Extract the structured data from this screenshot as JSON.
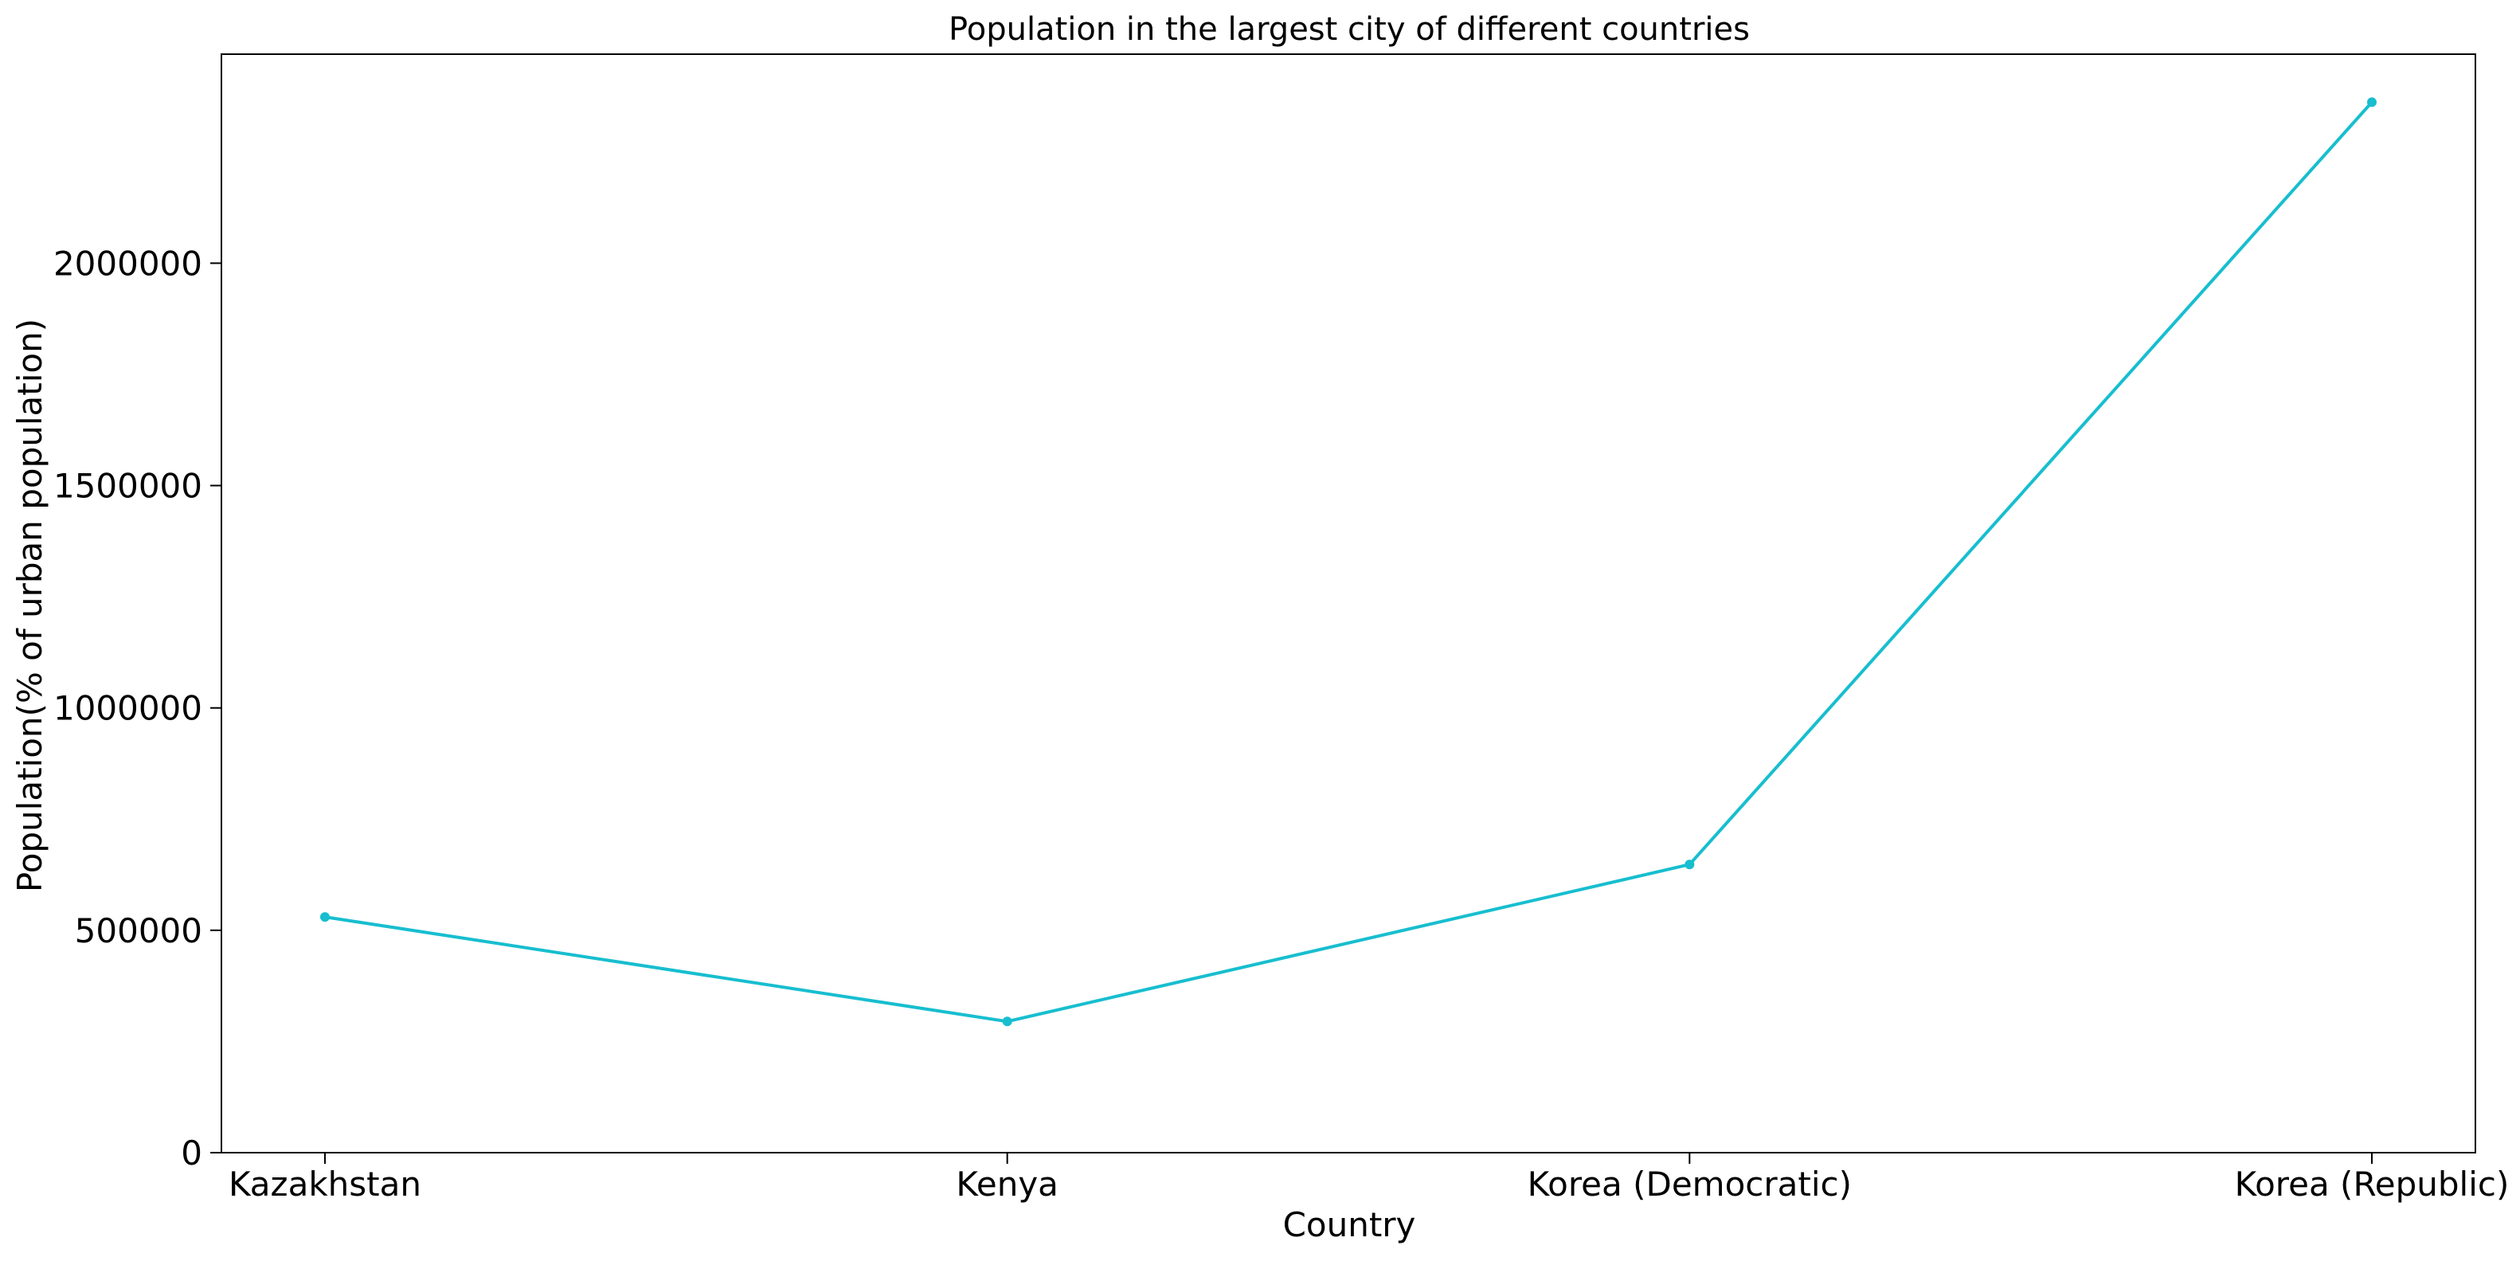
{
  "chart_data": {
    "type": "line",
    "title": "Population in the largest city of different countries",
    "xlabel": "Country",
    "ylabel": "Population(% of urban population)",
    "categories": [
      "Kazakhstan",
      "Kenya",
      "Korea (Democratic)",
      "Korea (Republic)"
    ],
    "series": [
      {
        "values": [
          530000,
          295000,
          648000,
          2362000
        ],
        "color": "#17becf"
      }
    ],
    "yticks": [
      0,
      500000,
      1000000,
      1500000,
      2000000
    ],
    "ylim": [
      0,
      2470000
    ],
    "grid": false,
    "legend": "none"
  }
}
